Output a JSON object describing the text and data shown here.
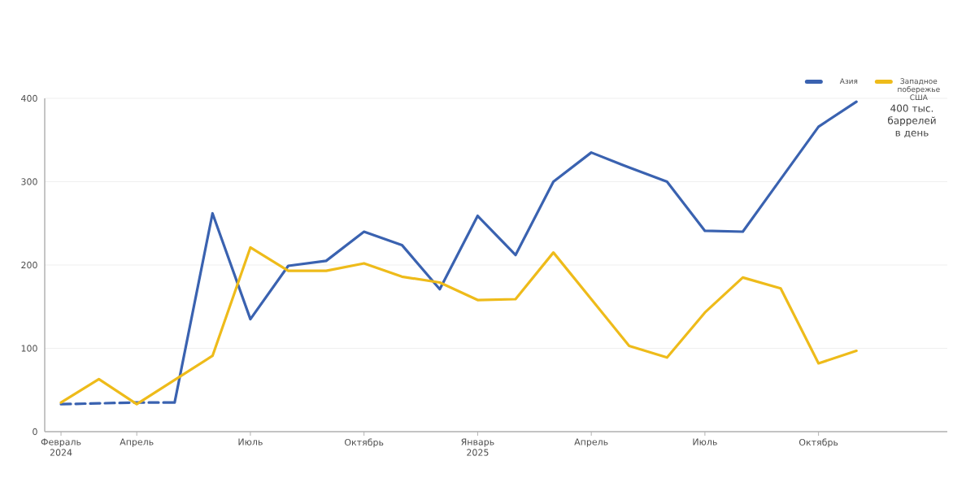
{
  "chart_data": {
    "type": "line",
    "categories": [
      "Февраль 2024",
      null,
      "Апрель",
      null,
      null,
      "Июль",
      null,
      null,
      "Октябрь",
      null,
      null,
      "Январь 2025",
      null,
      null,
      "Апрель",
      null,
      null,
      "Июль",
      null,
      null,
      "Октябрь",
      null
    ],
    "series": [
      {
        "color": "#3a62b0",
        "line_style": "dashed",
        "values": [
          33,
          34,
          35,
          35,
          null,
          null,
          null,
          null,
          null,
          null,
          null,
          null,
          null,
          null,
          null,
          null,
          null,
          null,
          null,
          null,
          null,
          null
        ]
      },
      {
        "name": "Азия",
        "color": "#3a62b0",
        "line_style": "solid",
        "values": [
          null,
          null,
          null,
          35,
          262,
          135,
          199,
          205,
          240,
          224,
          171,
          259,
          212,
          300,
          335,
          317,
          300,
          241,
          240,
          303,
          366,
          396
        ]
      },
      {
        "name": "Западное побережье США",
        "color": "#eebb1a",
        "line_style": "solid",
        "values": [
          35,
          63,
          33,
          62,
          91,
          221,
          193,
          193,
          202,
          186,
          179,
          158,
          159,
          215,
          159,
          103,
          89,
          143,
          185,
          172,
          82,
          97
        ]
      }
    ],
    "ylim": [
      0,
      400
    ],
    "yticks": [
      0,
      100,
      200,
      300,
      400
    ],
    "grid": "y",
    "legend": "top right",
    "marker": "none",
    "annotations": [
      "400 тыс. баррелей в день"
    ]
  }
}
